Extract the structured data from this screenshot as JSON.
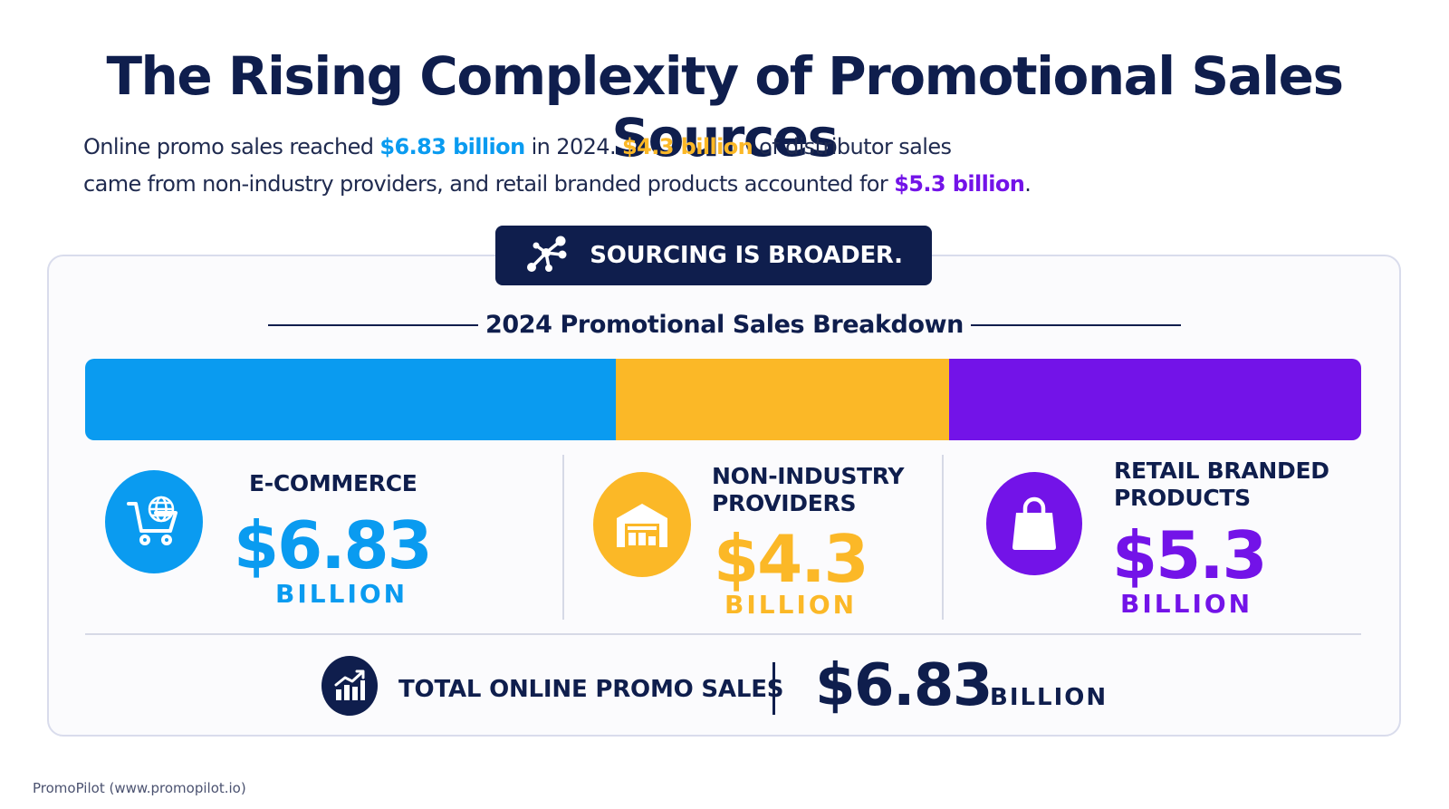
{
  "title": "The Rising Complexity of Promotional Sales Sources",
  "subtitle": {
    "p1": "Online promo sales reached ",
    "h1": "$6.83 billion",
    "p2": " in 2024. ",
    "h2": "$4.3 billion",
    "p3": " of distributor sales",
    "p4": "came from non-industry providers, and retail branded products accounted for ",
    "h3": "$5.3 billion",
    "p5": "."
  },
  "badge": {
    "icon": "network-nodes-icon",
    "label": "SOURCING IS BROADER."
  },
  "chart_data": {
    "type": "bar",
    "orientation": "stacked-horizontal",
    "title": "2024 Promotional Sales Breakdown",
    "unit": "BILLION",
    "categories": [
      "E-COMMERCE",
      "NON-INDUSTRY PROVIDERS",
      "RETAIL BRANDED PRODUCTS"
    ],
    "values": [
      6.83,
      4.3,
      5.3
    ],
    "value_labels": [
      "$6.83",
      "$4.3",
      "$5.3"
    ],
    "colors": [
      "#0a9bf0",
      "#fbb827",
      "#7313e8"
    ],
    "icons": [
      "shopping-cart-globe-icon",
      "warehouse-icon",
      "shopping-bag-icon"
    ]
  },
  "cards": [
    {
      "label_lines": [
        "E-COMMERCE"
      ],
      "value": "$6.83",
      "unit": "BILLION"
    },
    {
      "label_lines": [
        "NON-INDUSTRY",
        "PROVIDERS"
      ],
      "value": "$4.3",
      "unit": "BILLION"
    },
    {
      "label_lines": [
        "RETAIL BRANDED",
        "PRODUCTS"
      ],
      "value": "$5.3",
      "unit": "BILLION"
    }
  ],
  "total": {
    "icon": "growth-chart-icon",
    "label": "TOTAL ONLINE PROMO SALES",
    "value": "$6.83",
    "unit": "BILLION"
  },
  "footer": "PromoPilot (www.promopilot.io)",
  "colors": {
    "navy": "#0f1e4d",
    "blue": "#0a9bf0",
    "yellow": "#fbb827",
    "purple": "#7313e8"
  }
}
